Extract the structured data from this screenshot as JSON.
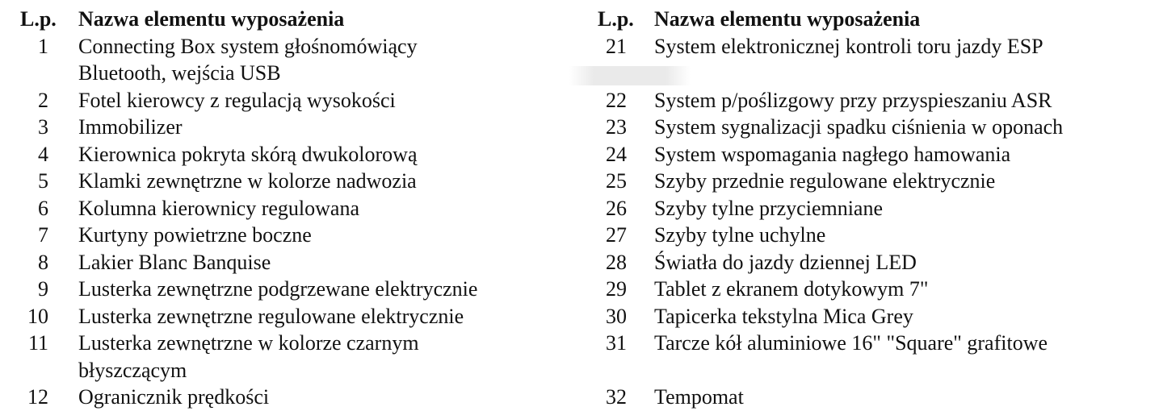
{
  "header": {
    "lp_label": "L.p.",
    "name_label": "Nazwa elementu wyposażenia"
  },
  "left_items": [
    {
      "num": "1",
      "lines": [
        "Connecting Box system głośnomówiący",
        "Bluetooth, wejścia USB"
      ]
    },
    {
      "num": "2",
      "lines": [
        "Fotel kierowcy z regulacją wysokości"
      ]
    },
    {
      "num": "3",
      "lines": [
        "Immobilizer"
      ]
    },
    {
      "num": "4",
      "lines": [
        "Kierownica pokryta skórą dwukolorową"
      ]
    },
    {
      "num": "5",
      "lines": [
        "Klamki zewnętrzne w kolorze nadwozia"
      ]
    },
    {
      "num": "6",
      "lines": [
        "Kolumna kierownicy regulowana"
      ]
    },
    {
      "num": "7",
      "lines": [
        "Kurtyny powietrzne boczne"
      ]
    },
    {
      "num": "8",
      "lines": [
        "Lakier Blanc Banquise"
      ]
    },
    {
      "num": "9",
      "lines": [
        "Lusterka zewnętrzne podgrzewane elektrycznie"
      ]
    },
    {
      "num": "10",
      "lines": [
        "Lusterka zewnętrzne regulowane elektrycznie"
      ]
    },
    {
      "num": "11",
      "lines": [
        "Lusterka zewnętrzne w kolorze czarnym",
        "błyszczącym"
      ]
    },
    {
      "num": "12",
      "lines": [
        "Ogranicznik prędkości"
      ]
    }
  ],
  "right_items": [
    {
      "num": "21",
      "text": "System elektronicznej kontroli toru jazdy ESP"
    },
    {
      "num": "22",
      "text": "System p/poślizgowy przy przyspieszaniu ASR"
    },
    {
      "num": "23",
      "text": "System sygnalizacji spadku ciśnienia w oponach"
    },
    {
      "num": "24",
      "text": "System wspomagania nagłego hamowania"
    },
    {
      "num": "25",
      "text": "Szyby przednie regulowane elektrycznie"
    },
    {
      "num": "26",
      "text": "Szyby tylne przyciemniane"
    },
    {
      "num": "27",
      "text": "Szyby tylne uchylne"
    },
    {
      "num": "28",
      "text": "Światła do jazdy dziennej LED"
    },
    {
      "num": "29",
      "text": "Tablet z ekranem dotykowym 7\""
    },
    {
      "num": "30",
      "text": "Tapicerka tekstylna Mica Grey"
    },
    {
      "num": "31",
      "text": "Tarcze kół aluminiowe 16\" \"Square\" grafitowe"
    },
    {
      "num": "32",
      "text": "Tempomat"
    }
  ]
}
